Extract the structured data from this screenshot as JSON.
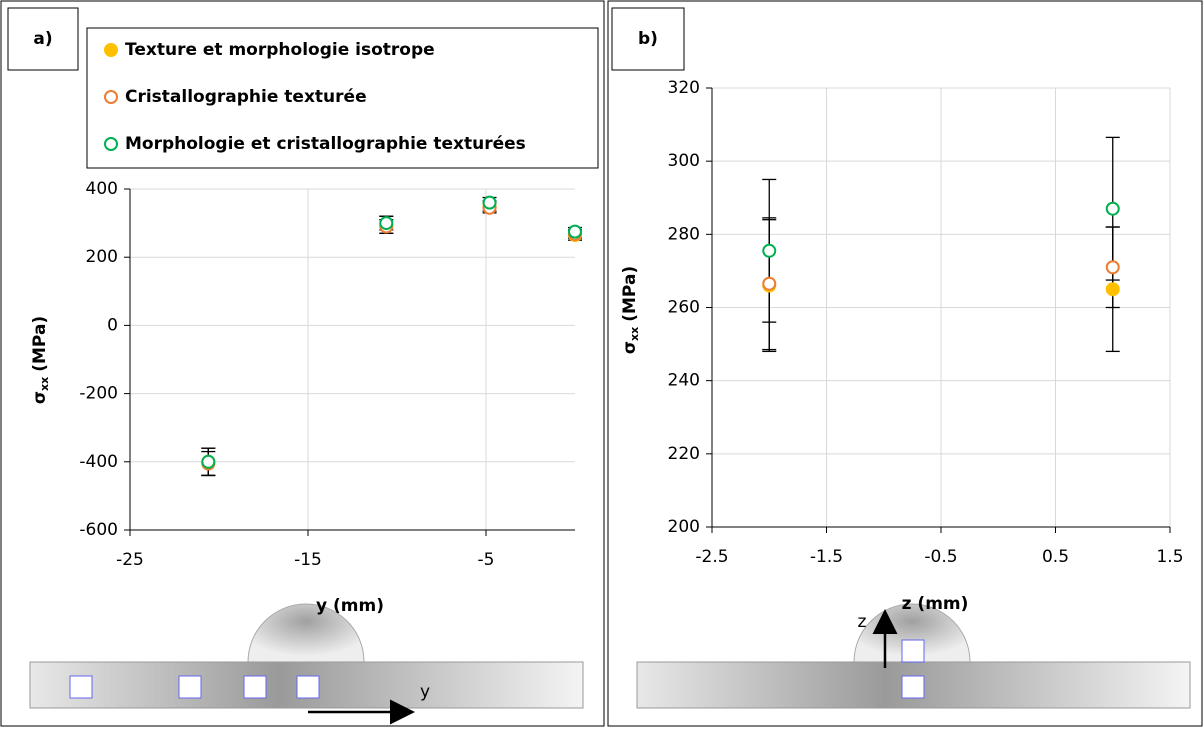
{
  "chart_data": [
    {
      "type": "scatter",
      "panel": "a)",
      "x_label": "y (mm)",
      "y_label": {
        "symbol": "σ",
        "subscript": "xx",
        "unit": "(MPa)"
      },
      "xlim": [
        -25,
        0
      ],
      "xticks": [
        -25,
        -15,
        -5
      ],
      "ylim": [
        -600,
        400
      ],
      "yticks": [
        -600,
        -400,
        -200,
        0,
        200,
        400
      ],
      "grid": true,
      "legend": "top",
      "x": [
        -20.6,
        -10.6,
        -4.8,
        0
      ],
      "series": [
        {
          "name": "Texture et morphologie isotrope",
          "color": "#ffc000",
          "filled": true,
          "values": [
            -400,
            295,
            350,
            265
          ],
          "errors": [
            40,
            25,
            15,
            15
          ]
        },
        {
          "name": "Cristallographie texturée",
          "color": "#ed7d31",
          "filled": false,
          "values": [
            -405,
            290,
            345,
            268
          ],
          "errors": [
            35,
            20,
            15,
            12
          ]
        },
        {
          "name": "Morphologie et cristallographie texturées",
          "color": "#00b050",
          "filled": false,
          "values": [
            -400,
            300,
            360,
            275
          ],
          "errors": [
            40,
            20,
            15,
            12
          ]
        }
      ],
      "diagram_label": "y"
    },
    {
      "type": "scatter",
      "panel": "b)",
      "x_label": "z (mm)",
      "y_label": {
        "symbol": "σ",
        "subscript": "xx",
        "unit": "(MPa)"
      },
      "xlim": [
        -2.5,
        1.5
      ],
      "xticks": [
        -2.5,
        -1.5,
        -0.5,
        0.5,
        1.5
      ],
      "ylim": [
        200,
        320
      ],
      "yticks": [
        200,
        220,
        240,
        260,
        280,
        300,
        320
      ],
      "grid": true,
      "x": [
        -2,
        1
      ],
      "series": [
        {
          "color": "#ffc000",
          "filled": true,
          "values": [
            266,
            265
          ],
          "errors": [
            18,
            17
          ]
        },
        {
          "color": "#ed7d31",
          "filled": false,
          "values": [
            266.5,
            271
          ],
          "errors": [
            18,
            11
          ]
        },
        {
          "color": "#00b050",
          "filled": false,
          "values": [
            275.5,
            287
          ],
          "errors": [
            19.5,
            19.5
          ]
        }
      ],
      "diagram_label": "z"
    }
  ]
}
